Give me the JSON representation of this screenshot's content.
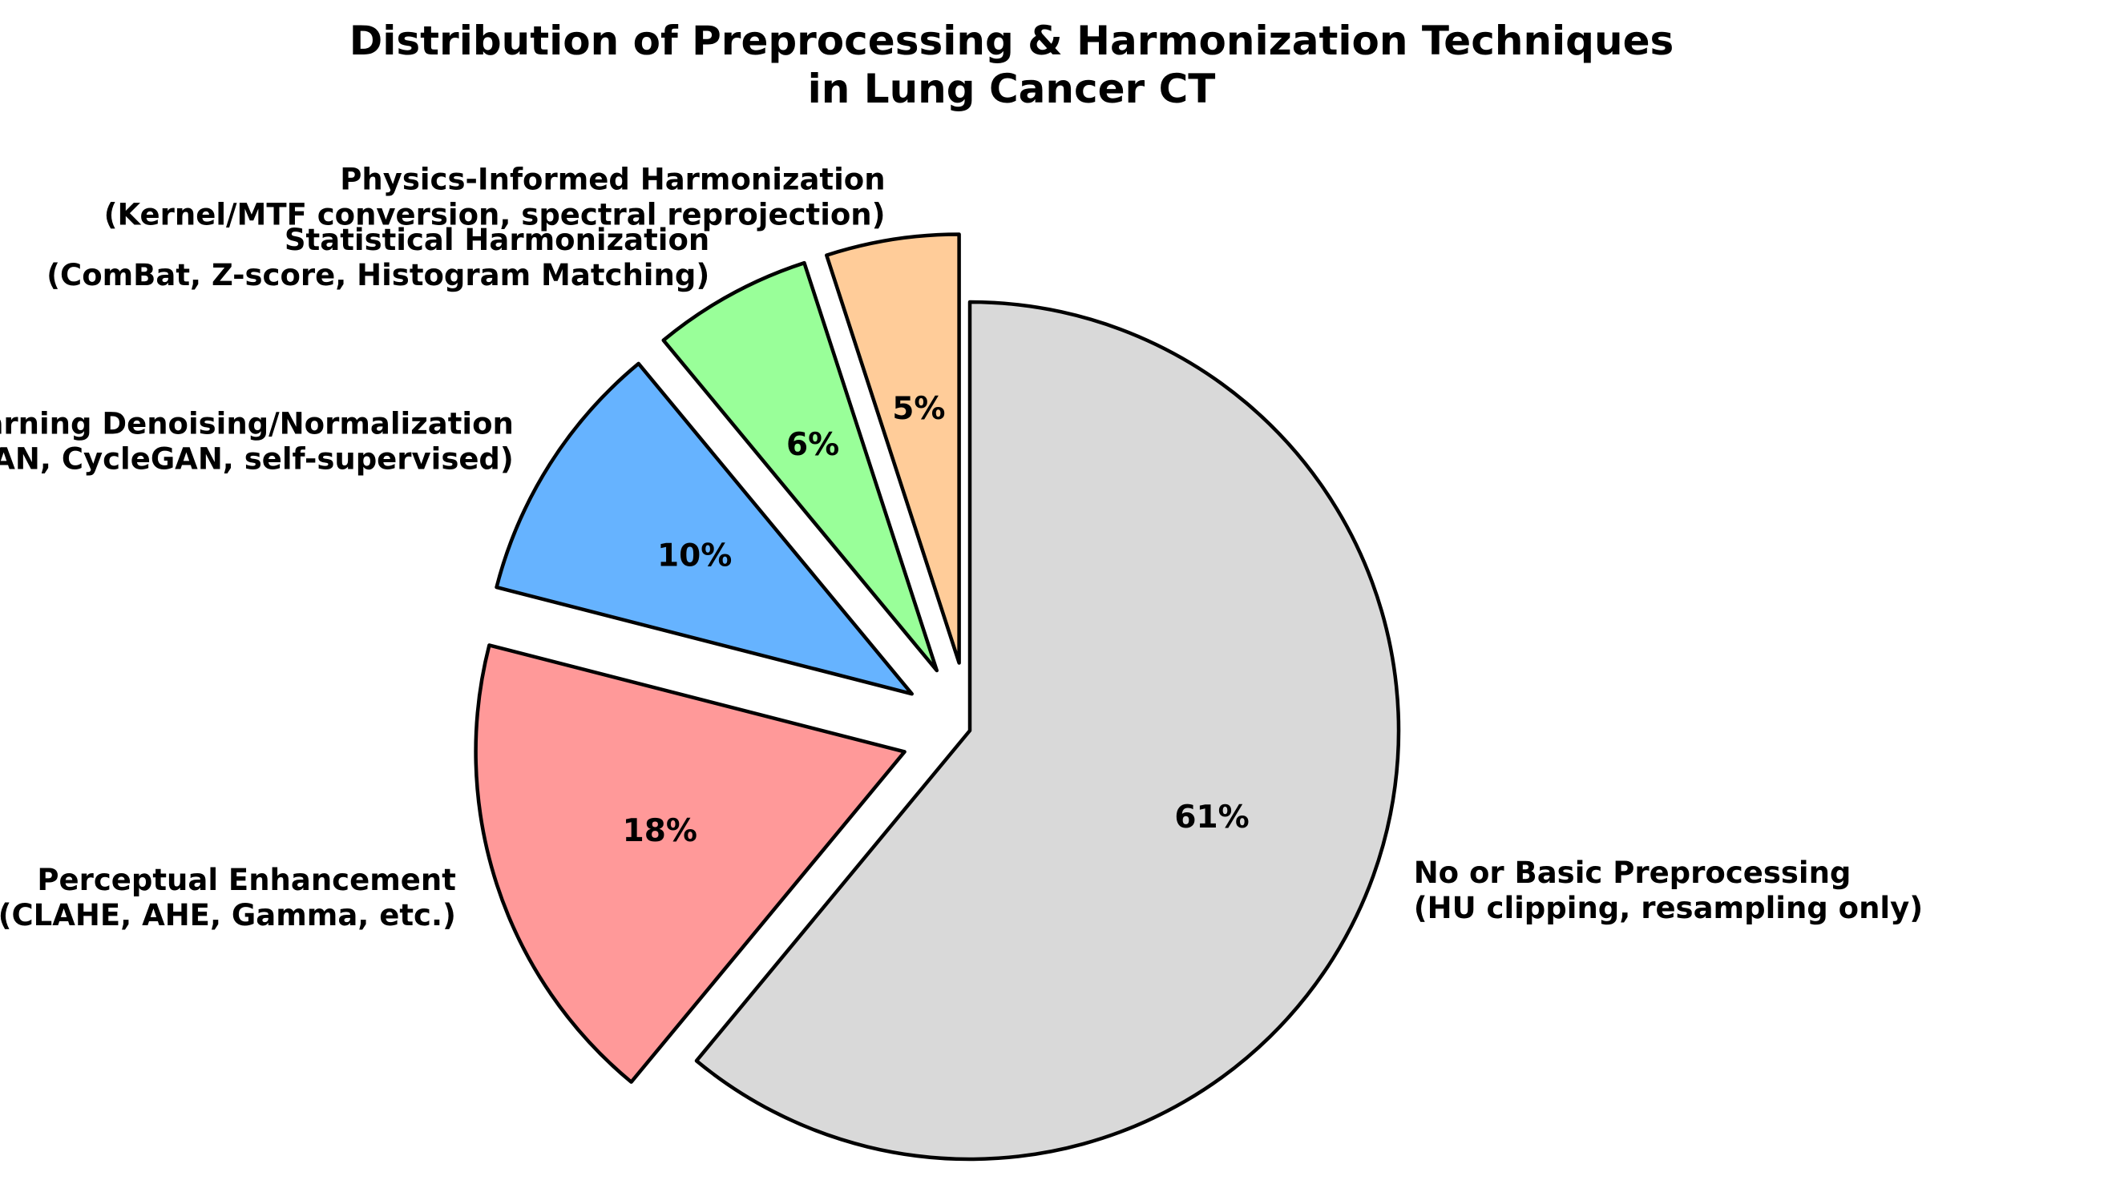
{
  "chart_data": {
    "type": "pie",
    "title": [
      "Distribution of Preprocessing & Harmonization Techniques",
      "in Lung Cancer CT"
    ],
    "start_angle_deg": 90,
    "direction": "counterclockwise",
    "slices": [
      {
        "label": [
          "Physics-Informed Harmonization",
          "(Kernel/MTF conversion, spectral reprojection)"
        ],
        "value": 5,
        "pct_label": "5%",
        "color": "#ffcc99",
        "exploded": true
      },
      {
        "label": [
          "Statistical Harmonization",
          "(ComBat, Z-score, Histogram Matching)"
        ],
        "value": 6,
        "pct_label": "6%",
        "color": "#99ff99",
        "exploded": true
      },
      {
        "label": [
          "Deep Learning Denoising/Normalization",
          "(DLIR, GAN, CycleGAN, self-supervised)"
        ],
        "value": 10,
        "pct_label": "10%",
        "color": "#66b3ff",
        "exploded": true
      },
      {
        "label": [
          "Perceptual Enhancement",
          "(CLAHE, AHE, Gamma, etc.)"
        ],
        "value": 18,
        "pct_label": "18%",
        "color": "#ff9999",
        "exploded": true
      },
      {
        "label": [
          "No or Basic Preprocessing",
          "(HU clipping, resampling only)"
        ],
        "value": 61,
        "pct_label": "61%",
        "color": "#d9d9d9",
        "exploded": false
      }
    ]
  }
}
